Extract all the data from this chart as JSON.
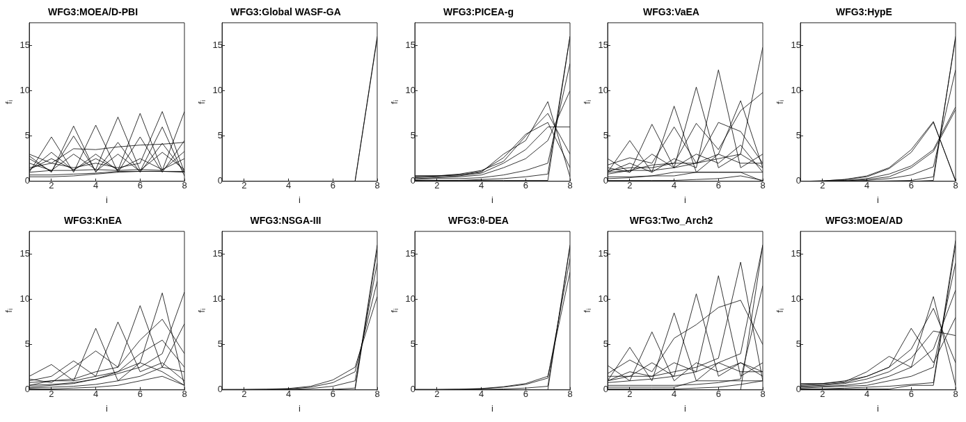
{
  "chart_data": [
    {
      "type": "line",
      "title": "WFG3:MOEA/D-PBI",
      "xlabel": "i",
      "ylabel": "fᵢ",
      "x": [
        1,
        2,
        3,
        4,
        5,
        6,
        7,
        8
      ],
      "xlim": [
        1,
        8
      ],
      "xticks": [
        2,
        4,
        6,
        8
      ],
      "ylim": [
        0,
        17.5
      ],
      "yticks": [
        0,
        5,
        10,
        15
      ],
      "grid": false,
      "legend": false,
      "marker": "none",
      "series": [
        {
          "color": "#000000",
          "values": [
            2.8,
            1.0,
            6.1,
            1.0,
            4.3,
            1.0,
            4.2,
            1.0
          ]
        },
        {
          "color": "#000000",
          "values": [
            1.0,
            4.9,
            1.0,
            6.2,
            1.0,
            4.9,
            1.0,
            4.5
          ]
        },
        {
          "color": "#000000",
          "values": [
            2.0,
            1.2,
            3.0,
            1.3,
            7.1,
            1.2,
            3.2,
            1.3
          ]
        },
        {
          "color": "#000000",
          "values": [
            1.2,
            3.2,
            1.2,
            3.0,
            1.2,
            7.5,
            1.2,
            3.3
          ]
        },
        {
          "color": "#000000",
          "values": [
            1.5,
            2.0,
            1.5,
            2.0,
            1.5,
            2.0,
            7.7,
            1.0
          ]
        },
        {
          "color": "#000000",
          "values": [
            1.0,
            1.2,
            1.2,
            1.3,
            1.2,
            1.3,
            1.2,
            7.7
          ]
        },
        {
          "color": "#000000",
          "values": [
            0.7,
            0.7,
            0.8,
            0.9,
            1.1,
            1.1,
            1.1,
            1.1
          ]
        },
        {
          "color": "#000000",
          "values": [
            0.5,
            0.5,
            0.6,
            0.8,
            1.0,
            1.1,
            1.1,
            1.0
          ]
        },
        {
          "color": "#000000",
          "values": [
            3.0,
            2.0,
            3.6,
            3.5,
            3.8,
            4.0,
            4.1,
            4.3
          ]
        },
        {
          "color": "#000000",
          "values": [
            1.3,
            2.5,
            1.3,
            2.5,
            1.3,
            2.5,
            1.3,
            2.5
          ]
        },
        {
          "color": "#000000",
          "values": [
            2.5,
            1.1,
            5.0,
            1.1,
            3.0,
            1.1,
            6.0,
            0.6
          ]
        }
      ]
    },
    {
      "type": "line",
      "title": "WFG3:Global WASF-GA",
      "xlabel": "i",
      "ylabel": "fᵢ",
      "x": [
        1,
        2,
        3,
        4,
        5,
        6,
        7,
        8
      ],
      "xlim": [
        1,
        8
      ],
      "xticks": [
        2,
        4,
        6,
        8
      ],
      "ylim": [
        0,
        17.5
      ],
      "yticks": [
        0,
        5,
        10,
        15
      ],
      "grid": false,
      "legend": false,
      "marker": "none",
      "series": [
        {
          "color": "#000000",
          "values": [
            0,
            0,
            0,
            0,
            0,
            0,
            0,
            16.0
          ]
        },
        {
          "color": "#000000",
          "values": [
            0,
            0,
            0,
            0,
            0,
            0,
            0,
            15.8
          ]
        }
      ]
    },
    {
      "type": "line",
      "title": "WFG3:PICEA-g",
      "xlabel": "i",
      "ylabel": "fᵢ",
      "x": [
        1,
        2,
        3,
        4,
        5,
        6,
        7,
        8
      ],
      "xlim": [
        1,
        8
      ],
      "xticks": [
        2,
        4,
        6,
        8
      ],
      "ylim": [
        0,
        17.5
      ],
      "yticks": [
        0,
        5,
        10,
        15
      ],
      "grid": false,
      "legend": false,
      "marker": "none",
      "series": [
        {
          "color": "#000000",
          "values": [
            0.6,
            0.6,
            0.7,
            1.0,
            3.0,
            4.5,
            8.8,
            0.5
          ]
        },
        {
          "color": "#000000",
          "values": [
            0.5,
            0.6,
            0.8,
            1.2,
            2.2,
            5.0,
            7.5,
            3.0
          ]
        },
        {
          "color": "#000000",
          "values": [
            0.4,
            0.5,
            0.6,
            0.9,
            2.0,
            3.5,
            6.0,
            6.0
          ]
        },
        {
          "color": "#000000",
          "values": [
            0.3,
            0.4,
            0.5,
            0.7,
            1.5,
            2.5,
            4.5,
            10.0
          ]
        },
        {
          "color": "#000000",
          "values": [
            0.2,
            0.3,
            0.3,
            0.4,
            0.7,
            1.2,
            2.0,
            13.0
          ]
        },
        {
          "color": "#000000",
          "values": [
            0.1,
            0.1,
            0.1,
            0.2,
            0.3,
            0.5,
            0.8,
            16.0
          ]
        },
        {
          "color": "#000000",
          "values": [
            0.1,
            0.1,
            0.1,
            0.1,
            0.1,
            0.1,
            0.1,
            16.0
          ]
        },
        {
          "color": "#000000",
          "values": [
            0.6,
            0.6,
            0.7,
            1.1,
            2.6,
            5.2,
            6.5,
            1.5
          ]
        }
      ]
    },
    {
      "type": "line",
      "title": "WFG3:VaEA",
      "xlabel": "i",
      "ylabel": "fᵢ",
      "x": [
        1,
        2,
        3,
        4,
        5,
        6,
        7,
        8
      ],
      "xlim": [
        1,
        8
      ],
      "xticks": [
        2,
        4,
        6,
        8
      ],
      "ylim": [
        0,
        17.5
      ],
      "yticks": [
        0,
        5,
        10,
        15
      ],
      "grid": false,
      "legend": false,
      "marker": "none",
      "series": [
        {
          "color": "#000000",
          "values": [
            2.5,
            1.0,
            6.3,
            1.5,
            3.0,
            2.0,
            4.0,
            1.0
          ]
        },
        {
          "color": "#000000",
          "values": [
            1.0,
            4.5,
            1.0,
            8.3,
            1.0,
            3.0,
            2.0,
            2.0
          ]
        },
        {
          "color": "#000000",
          "values": [
            1.5,
            1.0,
            3.0,
            1.5,
            10.4,
            1.5,
            3.0,
            1.5
          ]
        },
        {
          "color": "#000000",
          "values": [
            1.0,
            2.0,
            1.0,
            2.5,
            1.5,
            12.3,
            1.5,
            3.0
          ]
        },
        {
          "color": "#000000",
          "values": [
            1.2,
            1.5,
            1.5,
            2.0,
            2.0,
            3.0,
            8.9,
            1.5
          ]
        },
        {
          "color": "#000000",
          "values": [
            1.0,
            1.2,
            1.2,
            1.5,
            2.0,
            2.5,
            3.0,
            14.8
          ]
        },
        {
          "color": "#000000",
          "values": [
            0.5,
            0.5,
            0.6,
            0.6,
            1.0,
            1.0,
            1.0,
            1.0
          ]
        },
        {
          "color": "#000000",
          "values": [
            0.1,
            0.1,
            0.1,
            0.1,
            0.2,
            0.3,
            0.6,
            0.1
          ]
        },
        {
          "color": "#000000",
          "values": [
            1.8,
            2.6,
            2.0,
            6.0,
            2.0,
            6.5,
            5.5,
            2.0
          ]
        },
        {
          "color": "#000000",
          "values": [
            0.8,
            1.2,
            1.8,
            2.0,
            6.4,
            3.5,
            7.8,
            9.8
          ]
        },
        {
          "color": "#000000",
          "values": [
            0.3,
            0.4,
            0.6,
            1.0,
            1.0,
            1.0,
            1.0,
            0.0
          ]
        }
      ]
    },
    {
      "type": "line",
      "title": "WFG3:HypE",
      "xlabel": "i",
      "ylabel": "fᵢ",
      "x": [
        1,
        2,
        3,
        4,
        5,
        6,
        7,
        8
      ],
      "xlim": [
        1,
        8
      ],
      "xticks": [
        2,
        4,
        6,
        8
      ],
      "ylim": [
        0,
        17.5
      ],
      "yticks": [
        0,
        5,
        10,
        15
      ],
      "grid": false,
      "legend": false,
      "marker": "none",
      "series": [
        {
          "color": "#000000",
          "values": [
            0,
            0.05,
            0.2,
            0.6,
            1.5,
            3.5,
            6.6,
            0
          ]
        },
        {
          "color": "#000000",
          "values": [
            0,
            0.05,
            0.2,
            0.5,
            1.4,
            3.2,
            6.5,
            0.1
          ]
        },
        {
          "color": "#000000",
          "values": [
            0,
            0.03,
            0.1,
            0.3,
            0.8,
            1.7,
            3.5,
            8.2
          ]
        },
        {
          "color": "#000000",
          "values": [
            0,
            0.02,
            0.05,
            0.2,
            0.5,
            1.5,
            3.3,
            7.9
          ]
        },
        {
          "color": "#000000",
          "values": [
            0,
            0.01,
            0.05,
            0.1,
            0.3,
            0.7,
            1.6,
            12.3
          ]
        },
        {
          "color": "#000000",
          "values": [
            0,
            0,
            0,
            0,
            0.05,
            0.1,
            0.5,
            15.8
          ]
        },
        {
          "color": "#000000",
          "values": [
            0,
            0,
            0,
            0,
            0,
            0,
            0.1,
            16.0
          ]
        }
      ]
    },
    {
      "type": "line",
      "title": "WFG3:KnEA",
      "xlabel": "i",
      "ylabel": "fᵢ",
      "x": [
        1,
        2,
        3,
        4,
        5,
        6,
        7,
        8
      ],
      "xlim": [
        1,
        8
      ],
      "xticks": [
        2,
        4,
        6,
        8
      ],
      "ylim": [
        0,
        17.5
      ],
      "yticks": [
        0,
        5,
        10,
        15
      ],
      "grid": false,
      "legend": false,
      "marker": "none",
      "series": [
        {
          "color": "#000000",
          "values": [
            1.5,
            2.8,
            1.0,
            6.8,
            1.0,
            3.0,
            2.0,
            0.5
          ]
        },
        {
          "color": "#000000",
          "values": [
            1.0,
            1.5,
            3.2,
            1.5,
            7.5,
            2.0,
            3.0,
            1.0
          ]
        },
        {
          "color": "#000000",
          "values": [
            0.8,
            1.0,
            1.2,
            2.0,
            2.5,
            9.3,
            2.5,
            2.0
          ]
        },
        {
          "color": "#000000",
          "values": [
            0.5,
            1.0,
            1.0,
            1.5,
            2.0,
            3.0,
            10.7,
            0.5
          ]
        },
        {
          "color": "#000000",
          "values": [
            0.5,
            0.6,
            0.8,
            1.2,
            1.8,
            2.5,
            4.0,
            10.8
          ]
        },
        {
          "color": "#000000",
          "values": [
            0.2,
            0.3,
            0.4,
            0.6,
            1.0,
            1.5,
            2.5,
            7.3
          ]
        },
        {
          "color": "#000000",
          "values": [
            0.1,
            0.1,
            0.2,
            0.3,
            0.5,
            1.0,
            1.5,
            0.5
          ]
        },
        {
          "color": "#000000",
          "values": [
            1.2,
            0.8,
            2.5,
            4.3,
            2.5,
            5.5,
            7.8,
            4.0
          ]
        },
        {
          "color": "#000000",
          "values": [
            0.3,
            0.5,
            0.7,
            1.2,
            2.0,
            4.0,
            5.5,
            2.5
          ]
        }
      ]
    },
    {
      "type": "line",
      "title": "WFG3:NSGA-III",
      "xlabel": "i",
      "ylabel": "fᵢ",
      "x": [
        1,
        2,
        3,
        4,
        5,
        6,
        7,
        8
      ],
      "xlim": [
        1,
        8
      ],
      "xticks": [
        2,
        4,
        6,
        8
      ],
      "ylim": [
        0,
        17.5
      ],
      "yticks": [
        0,
        5,
        10,
        15
      ],
      "grid": false,
      "legend": false,
      "marker": "none",
      "series": [
        {
          "color": "#000000",
          "values": [
            0.05,
            0.05,
            0.08,
            0.15,
            0.4,
            1.1,
            2.5,
            10.3
          ]
        },
        {
          "color": "#000000",
          "values": [
            0.03,
            0.04,
            0.05,
            0.1,
            0.3,
            0.8,
            2.0,
            12.0
          ]
        },
        {
          "color": "#000000",
          "values": [
            0.02,
            0.02,
            0.03,
            0.05,
            0.15,
            0.4,
            1.0,
            14.0
          ]
        },
        {
          "color": "#000000",
          "values": [
            0,
            0,
            0,
            0,
            0.02,
            0.05,
            0.2,
            16.0
          ]
        },
        {
          "color": "#000000",
          "values": [
            0,
            0,
            0,
            0,
            0,
            0,
            0,
            15.5
          ]
        }
      ]
    },
    {
      "type": "line",
      "title": "WFG3:θ-DEA",
      "xlabel": "i",
      "ylabel": "fᵢ",
      "x": [
        1,
        2,
        3,
        4,
        5,
        6,
        7,
        8
      ],
      "xlim": [
        1,
        8
      ],
      "xticks": [
        2,
        4,
        6,
        8
      ],
      "ylim": [
        0,
        17.5
      ],
      "yticks": [
        0,
        5,
        10,
        15
      ],
      "grid": false,
      "legend": false,
      "marker": "none",
      "series": [
        {
          "color": "#000000",
          "values": [
            0.05,
            0.05,
            0.08,
            0.15,
            0.35,
            0.7,
            1.5,
            13.0
          ]
        },
        {
          "color": "#000000",
          "values": [
            0.04,
            0.04,
            0.06,
            0.12,
            0.3,
            0.6,
            1.3,
            14.5
          ]
        },
        {
          "color": "#000000",
          "values": [
            0.02,
            0.02,
            0.03,
            0.06,
            0.1,
            0.2,
            0.4,
            15.8
          ]
        },
        {
          "color": "#000000",
          "values": [
            0,
            0,
            0,
            0,
            0,
            0,
            0,
            16.0
          ]
        }
      ]
    },
    {
      "type": "line",
      "title": "WFG3:Two_Arch2",
      "xlabel": "i",
      "ylabel": "fᵢ",
      "x": [
        1,
        2,
        3,
        4,
        5,
        6,
        7,
        8
      ],
      "xlim": [
        1,
        8
      ],
      "xticks": [
        2,
        4,
        6,
        8
      ],
      "ylim": [
        0,
        17.5
      ],
      "yticks": [
        0,
        5,
        10,
        15
      ],
      "grid": false,
      "legend": false,
      "marker": "none",
      "series": [
        {
          "color": "#000000",
          "values": [
            2.7,
            1.0,
            6.4,
            1.0,
            3.0,
            2.0,
            3.0,
            2.0
          ]
        },
        {
          "color": "#000000",
          "values": [
            1.0,
            4.7,
            1.0,
            8.5,
            1.0,
            3.0,
            2.0,
            2.0
          ]
        },
        {
          "color": "#000000",
          "values": [
            1.5,
            1.5,
            3.0,
            1.5,
            10.6,
            1.5,
            3.0,
            1.5
          ]
        },
        {
          "color": "#000000",
          "values": [
            1.0,
            2.0,
            1.5,
            3.0,
            2.0,
            12.6,
            1.5,
            3.0
          ]
        },
        {
          "color": "#000000",
          "values": [
            1.0,
            1.5,
            1.5,
            2.0,
            2.5,
            3.5,
            14.1,
            1.0
          ]
        },
        {
          "color": "#000000",
          "values": [
            0.8,
            1.0,
            1.2,
            1.5,
            2.0,
            3.0,
            4.0,
            16.0
          ]
        },
        {
          "color": "#000000",
          "values": [
            0.5,
            0.5,
            0.5,
            0.5,
            0.6,
            0.8,
            1.2,
            11.5
          ]
        },
        {
          "color": "#000000",
          "values": [
            0.1,
            0.1,
            0.1,
            0.1,
            0.2,
            0.3,
            0.6,
            1.0
          ]
        },
        {
          "color": "#000000",
          "values": [
            0,
            0,
            0,
            0,
            0,
            0,
            0,
            16.0
          ]
        },
        {
          "color": "#000000",
          "values": [
            1.8,
            3.3,
            2.0,
            5.7,
            7.2,
            9.1,
            9.9,
            5.0
          ]
        },
        {
          "color": "#000000",
          "values": [
            0.3,
            0.3,
            0.3,
            0.3,
            1.0,
            1.0,
            1.0,
            1.0
          ]
        }
      ]
    },
    {
      "type": "line",
      "title": "WFG3:MOEA/AD",
      "xlabel": "i",
      "ylabel": "fᵢ",
      "x": [
        1,
        2,
        3,
        4,
        5,
        6,
        7,
        8
      ],
      "xlim": [
        1,
        8
      ],
      "xticks": [
        2,
        4,
        6,
        8
      ],
      "ylim": [
        0,
        17.5
      ],
      "yticks": [
        0,
        5,
        10,
        15
      ],
      "grid": false,
      "legend": false,
      "marker": "none",
      "series": [
        {
          "color": "#000000",
          "values": [
            0.7,
            0.7,
            0.9,
            2.0,
            3.7,
            2.5,
            10.3,
            0.5
          ]
        },
        {
          "color": "#000000",
          "values": [
            0.6,
            0.7,
            1.0,
            1.5,
            2.5,
            6.8,
            3.0,
            8.0
          ]
        },
        {
          "color": "#000000",
          "values": [
            0.5,
            0.6,
            0.8,
            1.5,
            2.5,
            4.5,
            9.0,
            3.0
          ]
        },
        {
          "color": "#000000",
          "values": [
            0.4,
            0.5,
            0.7,
            1.2,
            2.0,
            3.5,
            6.5,
            6.0
          ]
        },
        {
          "color": "#000000",
          "values": [
            0.3,
            0.4,
            0.5,
            0.8,
            1.5,
            2.5,
            4.5,
            11.0
          ]
        },
        {
          "color": "#000000",
          "values": [
            0.2,
            0.3,
            0.4,
            0.5,
            1.0,
            1.5,
            2.5,
            14.0
          ]
        },
        {
          "color": "#000000",
          "values": [
            0.1,
            0.1,
            0.2,
            0.3,
            0.4,
            0.6,
            0.8,
            16.5
          ]
        },
        {
          "color": "#000000",
          "values": [
            0.1,
            0.1,
            0.1,
            0.1,
            0.1,
            0.5,
            0.5,
            16.0
          ]
        }
      ]
    }
  ]
}
